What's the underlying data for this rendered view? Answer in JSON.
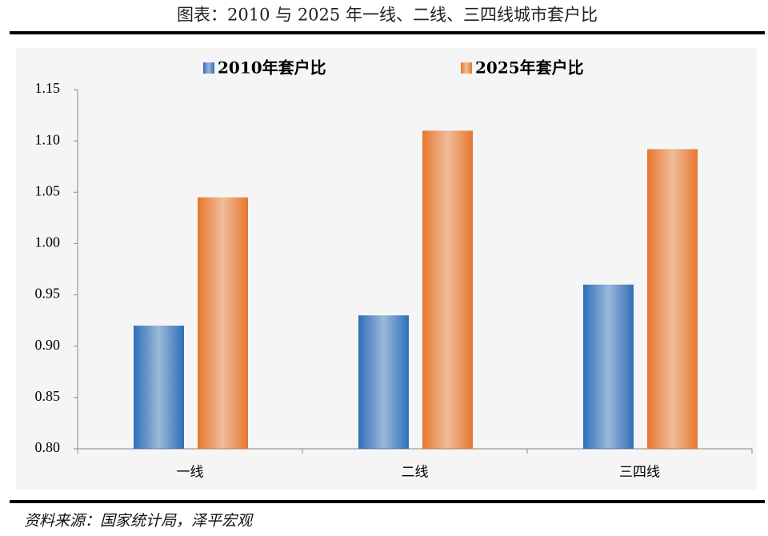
{
  "chart_data": {
    "type": "bar",
    "title": "图表：2010 与 2025 年一线、二线、三四线城市套户比",
    "categories": [
      "一线",
      "二线",
      "三四线"
    ],
    "series": [
      {
        "name": "2010年套户比",
        "color": "#2e6fb8",
        "values": [
          0.92,
          0.93,
          0.96
        ]
      },
      {
        "name": "2025年套户比",
        "color": "#e8772e",
        "values": [
          1.045,
          1.11,
          1.092
        ]
      }
    ],
    "ylim": [
      0.8,
      1.15
    ],
    "yticks": [
      {
        "value": 0.8,
        "label": "0.80"
      },
      {
        "value": 0.85,
        "label": "0.85"
      },
      {
        "value": 0.9,
        "label": "0.90"
      },
      {
        "value": 0.95,
        "label": "0.95"
      },
      {
        "value": 1.0,
        "label": "1.00"
      },
      {
        "value": 1.05,
        "label": "1.05"
      },
      {
        "value": 1.1,
        "label": "1.10"
      },
      {
        "value": 1.15,
        "label": "1.15"
      }
    ],
    "source": "资料来源：国家统计局，泽平宏观"
  }
}
